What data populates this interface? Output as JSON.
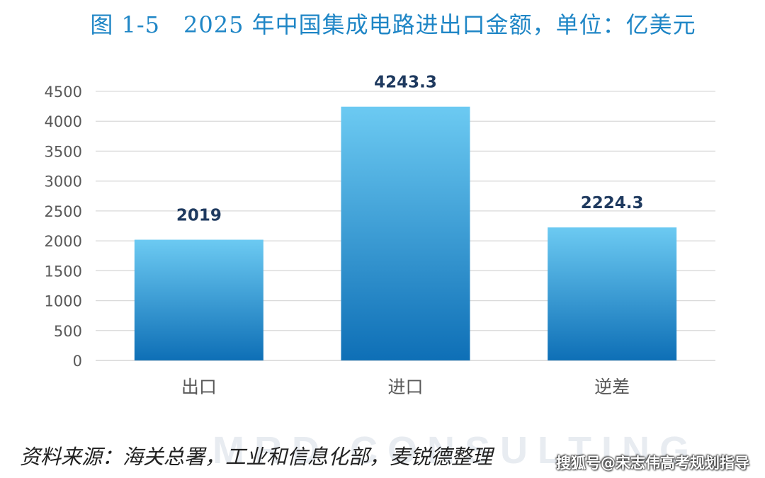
{
  "title": "图 1-5　2025 年中国集成电路进出口金额，单位：亿美元",
  "source_note": "资料来源：海关总署，工业和信息化部，麦锐德整理",
  "watermark": {
    "logo_text": "MRD CONSULTING",
    "credit": "搜狐号@宋志伟高考规划指导"
  },
  "colors": {
    "title": "#1f86c6",
    "bar_top": "#6ccaf2",
    "bar_bottom": "#0e6fb6",
    "value_label": "#1f3a5f",
    "grid": "#d9d9d9",
    "tick": "#595959"
  },
  "chart_data": {
    "type": "bar",
    "categories": [
      "出口",
      "进口",
      "逆差"
    ],
    "values": [
      2019,
      4243.3,
      2224.3
    ],
    "value_labels": [
      "2019",
      "4243.3",
      "2224.3"
    ],
    "ylim": [
      0,
      4500
    ],
    "yticks": [
      0,
      500,
      1000,
      1500,
      2000,
      2500,
      3000,
      3500,
      4000,
      4500
    ],
    "grid": true,
    "legend": "none"
  }
}
